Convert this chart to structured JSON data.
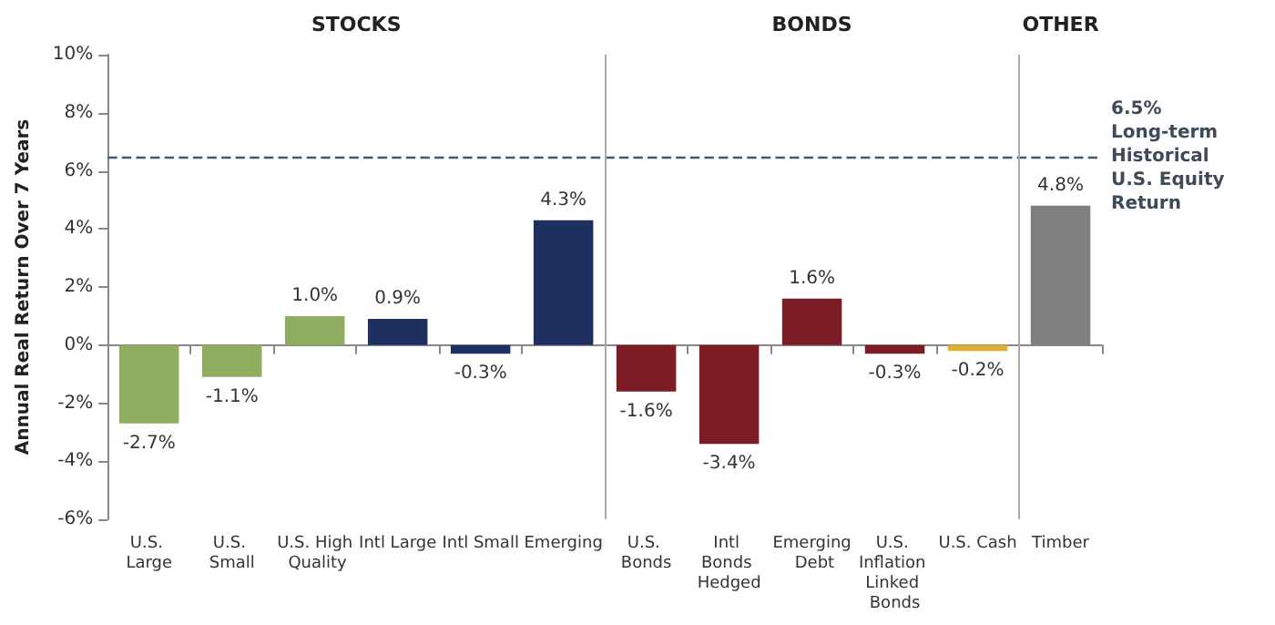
{
  "chart_data": {
    "type": "bar",
    "ylabel": "Annual Real Return Over 7 Years",
    "categories": [
      "U.S. Large",
      "U.S. Small",
      "U.S. High Quality",
      "Intl Large",
      "Intl Small",
      "Emerging",
      "U.S. Bonds",
      "Intl Bonds Hedged",
      "Emerging Debt",
      "U.S. Inflation Linked Bonds",
      "U.S. Cash",
      "Timber"
    ],
    "values": [
      -2.7,
      -1.1,
      1.0,
      0.9,
      -0.3,
      4.3,
      -1.6,
      -3.4,
      1.6,
      -0.3,
      -0.2,
      4.8
    ],
    "colors": [
      "#8fad5f",
      "#8fad5f",
      "#8fad5f",
      "#1f3060",
      "#1f3060",
      "#1f3060",
      "#7b1c26",
      "#7b1c26",
      "#7b1c26",
      "#7b1c26",
      "#e0b02a",
      "#7f7f7f"
    ],
    "value_labels": [
      "-2.7%",
      "-1.1%",
      "1.0%",
      "0.9%",
      "-0.3%",
      "4.3%",
      "-1.6%",
      "-3.4%",
      "1.6%",
      "-0.3%",
      "-0.2%",
      "4.8%"
    ],
    "ylim": [
      -6,
      10
    ],
    "yticks": [
      {
        "value": -6,
        "label": "-6%"
      },
      {
        "value": -4,
        "label": "-4%"
      },
      {
        "value": -2,
        "label": "-2%"
      },
      {
        "value": 0,
        "label": "0%"
      },
      {
        "value": 2,
        "label": "2%"
      },
      {
        "value": 4,
        "label": "4%"
      },
      {
        "value": 6,
        "label": "6%"
      },
      {
        "value": 8,
        "label": "8%"
      },
      {
        "value": 10,
        "label": "10%"
      }
    ],
    "ref_lines": [
      {
        "axis": "y",
        "value": 6.5,
        "label": "6.5% Long-term Historical U.S. Equity Return",
        "color": "#3e5a78",
        "line_style": "dashed"
      }
    ],
    "annotations": [
      "STOCKS",
      "BONDS",
      "OTHER"
    ]
  }
}
